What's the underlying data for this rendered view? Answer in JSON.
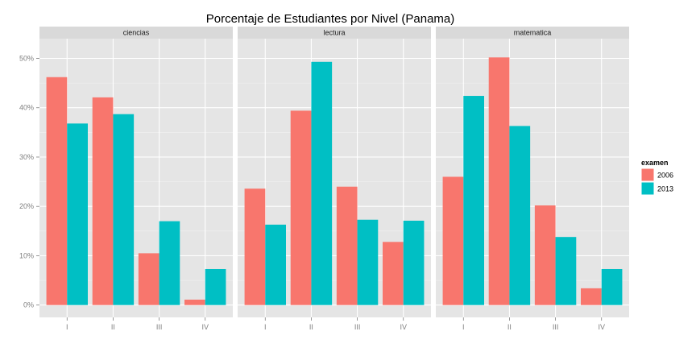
{
  "chart_data": {
    "type": "bar",
    "title": "Porcentaje de Estudiantes por Nivel (Panama)",
    "xlabel": "",
    "ylabel": "",
    "ylim": [
      -2.5,
      54
    ],
    "y_ticks": [
      0,
      10,
      20,
      30,
      40,
      50
    ],
    "y_tick_labels": [
      "0%",
      "10%",
      "20%",
      "30%",
      "40%",
      "50%"
    ],
    "categories": [
      "I",
      "II",
      "III",
      "IV"
    ],
    "grid": true,
    "legend": {
      "title": "examen",
      "placement": "right",
      "entries": [
        "2006",
        "2013"
      ]
    },
    "series_colors": [
      "#F8766D",
      "#00BFC4"
    ],
    "facets": [
      {
        "label": "ciencias",
        "series": [
          {
            "name": "2006",
            "values": [
              46.2,
              42.1,
              10.5,
              1.1
            ]
          },
          {
            "name": "2013",
            "values": [
              36.8,
              38.7,
              17.0,
              7.3
            ]
          }
        ]
      },
      {
        "label": "lectura",
        "series": [
          {
            "name": "2006",
            "values": [
              23.6,
              39.4,
              24.0,
              12.8
            ]
          },
          {
            "name": "2013",
            "values": [
              16.3,
              49.3,
              17.3,
              17.1
            ]
          }
        ]
      },
      {
        "label": "matematica",
        "series": [
          {
            "name": "2006",
            "values": [
              26.0,
              50.2,
              20.2,
              3.4
            ]
          },
          {
            "name": "2013",
            "values": [
              42.4,
              36.3,
              13.8,
              7.3
            ]
          }
        ]
      }
    ]
  }
}
